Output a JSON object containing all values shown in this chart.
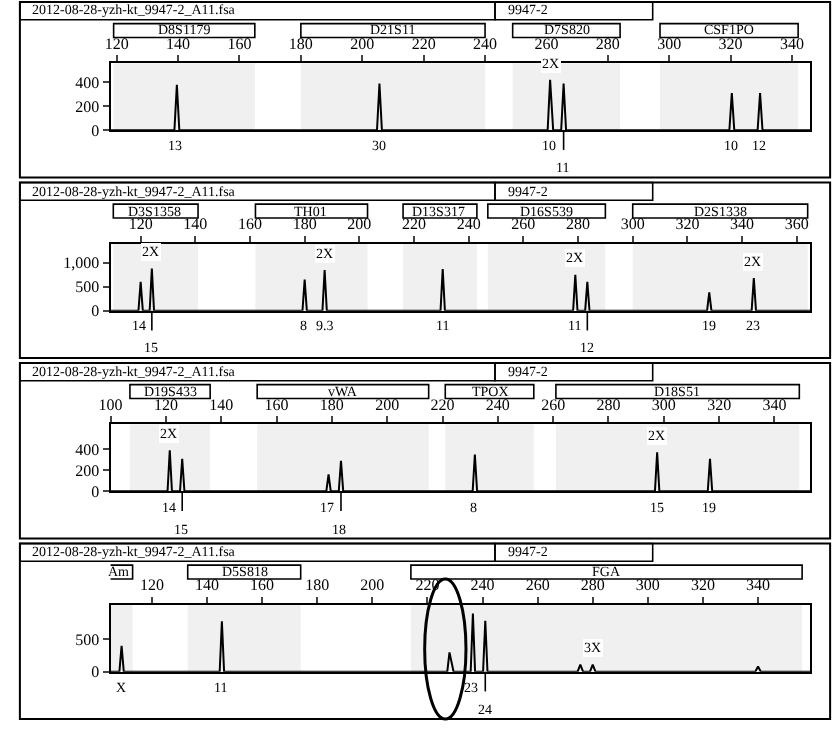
{
  "chart_data": [
    {
      "type": "line",
      "title": "2012-08-28-yzh-kt_9947-2_A11.fsa",
      "subtitle": "9947-2",
      "xlim": [
        118,
        346
      ],
      "ylim": [
        0,
        560
      ],
      "xticks": [
        120,
        140,
        160,
        180,
        200,
        220,
        240,
        260,
        280,
        300,
        320,
        340
      ],
      "yticks": [
        0,
        200,
        400
      ],
      "grid": false,
      "marker": "none",
      "series": [
        {
          "color": "#000000",
          "x": [
            118,
            138.8,
            139.6,
            140.4,
            204.8,
            205.6,
            206.4,
            260.4,
            261.2,
            262.2,
            264.8,
            265.6,
            266.4,
            319.6,
            320.4,
            321.2,
            328.8,
            329.6,
            330.4,
            346
          ],
          "values": [
            0,
            0,
            380,
            0,
            0,
            390,
            0,
            0,
            420,
            0,
            0,
            390,
            0,
            0,
            310,
            0,
            0,
            310,
            0,
            0
          ]
        }
      ],
      "bands": [
        {
          "axis": "x",
          "from": 119,
          "to": 165,
          "label": "D8S1179"
        },
        {
          "axis": "x",
          "from": 180,
          "to": 240,
          "label": "D21S11"
        },
        {
          "axis": "x",
          "from": 249,
          "to": 284,
          "label": "D7S820"
        },
        {
          "axis": "x",
          "from": 297,
          "to": 342,
          "label": "CSF1PO"
        }
      ],
      "annotations": [
        {
          "text": "13",
          "x": 139.6,
          "y": 0
        },
        {
          "text": "30",
          "x": 205.6,
          "y": 0
        },
        {
          "text": "10",
          "x": 261.2,
          "y": 0
        },
        {
          "text": "11",
          "x": 265.6,
          "y": 0
        },
        {
          "text": "10",
          "x": 320.4,
          "y": 0
        },
        {
          "text": "12",
          "x": 329.6,
          "y": 0
        },
        {
          "text": "2X",
          "x": 261.2,
          "y": 420
        }
      ]
    },
    {
      "type": "line",
      "title": "2012-08-28-yzh-kt_9947-2_A11.fsa",
      "subtitle": "9947-2",
      "xlim": [
        109,
        365
      ],
      "ylim": [
        0,
        1400
      ],
      "xticks": [
        120,
        140,
        160,
        180,
        200,
        220,
        240,
        260,
        280,
        300,
        320,
        340,
        360
      ],
      "yticks": [
        0,
        500,
        {
          "value": 1000,
          "label": "1,000"
        }
      ],
      "grid": false,
      "marker": "none",
      "series": [
        {
          "color": "#000000",
          "x": [
            109,
            119.2,
            120,
            120.8,
            123.3,
            124.1,
            124.9,
            179.2,
            180,
            180.8,
            186.5,
            187.3,
            188.1,
            229.7,
            230.5,
            231.3,
            278.2,
            279,
            279.8,
            282.6,
            283.4,
            284.2,
            327.2,
            328,
            328.8,
            343.5,
            344.3,
            345.1,
            365
          ],
          "values": [
            0,
            0,
            600,
            0,
            0,
            880,
            0,
            0,
            650,
            0,
            0,
            850,
            0,
            0,
            870,
            0,
            0,
            750,
            0,
            0,
            600,
            0,
            0,
            380,
            0,
            0,
            680,
            0,
            0
          ]
        }
      ],
      "bands": [
        {
          "axis": "x",
          "from": 110,
          "to": 141,
          "label": "D3S1358"
        },
        {
          "axis": "x",
          "from": 162,
          "to": 203,
          "label": "TH01"
        },
        {
          "axis": "x",
          "from": 216,
          "to": 243,
          "label": "D13S317"
        },
        {
          "axis": "x",
          "from": 247,
          "to": 290,
          "label": "D16S539"
        },
        {
          "axis": "x",
          "from": 300,
          "to": 364,
          "label": "D2S1338"
        }
      ],
      "annotations": [
        {
          "text": "14",
          "x": 120,
          "y": 0
        },
        {
          "text": "15",
          "x": 124.1,
          "y": 0
        },
        {
          "text": "8",
          "x": 180,
          "y": 0
        },
        {
          "text": "9.3",
          "x": 187.3,
          "y": 0
        },
        {
          "text": "11",
          "x": 230.5,
          "y": 0
        },
        {
          "text": "11",
          "x": 279,
          "y": 0
        },
        {
          "text": "12",
          "x": 283.4,
          "y": 0
        },
        {
          "text": "19",
          "x": 328,
          "y": 0
        },
        {
          "text": "23",
          "x": 344.3,
          "y": 0
        },
        {
          "text": "2X",
          "x": 124.1,
          "y": 880
        },
        {
          "text": "2X",
          "x": 187.3,
          "y": 850
        },
        {
          "text": "2X",
          "x": 279,
          "y": 750
        },
        {
          "text": "2X",
          "x": 344.3,
          "y": 680
        }
      ]
    },
    {
      "type": "line",
      "title": "2012-08-28-yzh-kt_9947-2_A11.fsa",
      "subtitle": "9947-2",
      "xlim": [
        100,
        353
      ],
      "ylim": [
        0,
        640
      ],
      "xticks": [
        100,
        120,
        140,
        160,
        180,
        200,
        220,
        240,
        260,
        280,
        300,
        320,
        340
      ],
      "yticks": [
        0,
        200,
        400
      ],
      "grid": false,
      "marker": "none",
      "series": [
        {
          "color": "#000000",
          "x": [
            100,
            120.6,
            121.4,
            122.2,
            125.1,
            125.9,
            126.7,
            178,
            178.8,
            179.6,
            182.5,
            183.3,
            184.1,
            230.9,
            231.7,
            232.5,
            296.8,
            297.6,
            298.4,
            315.9,
            316.7,
            317.5,
            353
          ],
          "values": [
            0,
            0,
            390,
            0,
            0,
            310,
            0,
            0,
            160,
            0,
            0,
            290,
            0,
            0,
            350,
            0,
            0,
            370,
            0,
            0,
            310,
            0,
            0
          ]
        }
      ],
      "bands": [
        {
          "axis": "x",
          "from": 107,
          "to": 136,
          "label": "D19S433"
        },
        {
          "axis": "x",
          "from": 153,
          "to": 215,
          "label": "vWA"
        },
        {
          "axis": "x",
          "from": 221,
          "to": 253,
          "label": "TPOX"
        },
        {
          "axis": "x",
          "from": 261,
          "to": 349,
          "label": "D18S51"
        }
      ],
      "annotations": [
        {
          "text": "14",
          "x": 121.4,
          "y": 0
        },
        {
          "text": "15",
          "x": 125.9,
          "y": 0
        },
        {
          "text": "17",
          "x": 178.8,
          "y": 0
        },
        {
          "text": "18",
          "x": 183.3,
          "y": 0
        },
        {
          "text": "8",
          "x": 231.7,
          "y": 0
        },
        {
          "text": "15",
          "x": 297.6,
          "y": 0
        },
        {
          "text": "19",
          "x": 316.7,
          "y": 0
        },
        {
          "text": "2X",
          "x": 121.4,
          "y": 390
        },
        {
          "text": "2X",
          "x": 297.6,
          "y": 370
        }
      ]
    },
    {
      "type": "line",
      "title": "2012-08-28-yzh-kt_9947-2_A11.fsa",
      "subtitle": "9947-2",
      "xlim": [
        105,
        359
      ],
      "ylim": [
        0,
        1040
      ],
      "xticks": [
        120,
        140,
        160,
        180,
        200,
        220,
        240,
        260,
        280,
        300,
        320,
        340
      ],
      "yticks": [
        0,
        500
      ],
      "grid": false,
      "marker": "none",
      "series": [
        {
          "color": "#000000",
          "x": [
            105,
            108.2,
            109,
            109.8,
            144.6,
            145.4,
            146.2,
            227.2,
            228,
            229.5,
            235.7,
            236.5,
            237.3,
            240.2,
            241,
            241.8,
            274.5,
            275.5,
            276.5,
            279,
            280,
            281,
            339,
            340,
            341,
            359
          ],
          "values": [
            0,
            0,
            400,
            0,
            0,
            780,
            0,
            0,
            300,
            0,
            0,
            900,
            0,
            0,
            790,
            0,
            0,
            110,
            0,
            0,
            110,
            0,
            0,
            80,
            0,
            0
          ]
        }
      ],
      "bands": [
        {
          "axis": "x",
          "from": 103,
          "to": 113,
          "label": "Am"
        },
        {
          "axis": "x",
          "from": 133,
          "to": 174,
          "label": "D5S818"
        },
        {
          "axis": "x",
          "from": 214,
          "to": 356,
          "label": "FGA"
        }
      ],
      "annotations": [
        {
          "text": "X",
          "x": 109,
          "y": 0
        },
        {
          "text": "11",
          "x": 145.4,
          "y": 0
        },
        {
          "text": "23",
          "x": 236.5,
          "y": 0
        },
        {
          "text": "24",
          "x": 241,
          "y": 0
        },
        {
          "text": "3X",
          "x": 280,
          "y": 110
        }
      ]
    }
  ]
}
